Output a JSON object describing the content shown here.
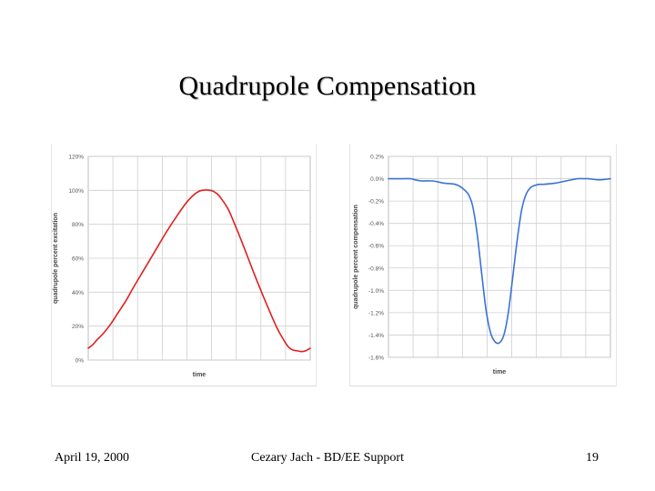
{
  "slide": {
    "title": "Quadrupole Compensation",
    "footer_date": "April 19, 2000",
    "footer_author": "Cezary Jach - BD/EE Support",
    "page_number": "19"
  },
  "chart_data": [
    {
      "type": "line",
      "xlabel": "time",
      "ylabel": "quadrupole percent excitation",
      "ylim": [
        0,
        120
      ],
      "yticks": [
        0,
        20,
        40,
        60,
        80,
        100,
        120
      ],
      "ytick_labels": [
        "0%",
        "20%",
        "40%",
        "60%",
        "80%",
        "100%",
        "120%"
      ],
      "x": [
        0,
        0.02,
        0.04,
        0.07,
        0.1,
        0.13,
        0.17,
        0.2,
        0.25,
        0.3,
        0.35,
        0.4,
        0.45,
        0.5,
        0.55,
        0.58,
        0.6,
        0.63,
        0.66,
        0.7,
        0.75,
        0.8,
        0.85,
        0.88,
        0.9,
        0.92,
        0.94,
        0.96,
        0.98,
        1.0
      ],
      "grid": true,
      "legend": "none",
      "series": [
        {
          "color": "#e02020",
          "values": [
            7,
            9,
            12,
            16,
            21,
            27,
            35,
            42,
            53,
            64,
            75,
            85,
            94,
            99.5,
            100,
            98,
            95,
            89,
            80,
            67,
            50,
            34,
            19,
            12,
            8,
            6,
            5.5,
            5,
            5.5,
            7
          ]
        }
      ]
    },
    {
      "type": "line",
      "xlabel": "time",
      "ylabel": "quadrupole percent compensation",
      "ylim": [
        -1.6,
        0.2
      ],
      "yticks": [
        0.2,
        0,
        -0.2,
        -0.4,
        -0.6,
        -0.8,
        -1.0,
        -1.2,
        -1.4,
        -1.6
      ],
      "ytick_labels": [
        "0.2%",
        "0.0%",
        "-0.2%",
        "-0.4%",
        "-0.6%",
        "-0.8%",
        "-1.0%",
        "-1.2%",
        "-1.4%",
        "-1.6%"
      ],
      "x": [
        0,
        0.05,
        0.1,
        0.12,
        0.15,
        0.2,
        0.25,
        0.3,
        0.33,
        0.36,
        0.38,
        0.4,
        0.42,
        0.44,
        0.46,
        0.48,
        0.5,
        0.52,
        0.54,
        0.56,
        0.58,
        0.6,
        0.62,
        0.64,
        0.66,
        0.68,
        0.7,
        0.75,
        0.8,
        0.85,
        0.88,
        0.9,
        0.95,
        1.0
      ],
      "grid": true,
      "legend": "none",
      "series": [
        {
          "color": "#3a72d8",
          "values": [
            0,
            0,
            0,
            -0.01,
            -0.02,
            -0.02,
            -0.04,
            -0.05,
            -0.08,
            -0.14,
            -0.25,
            -0.5,
            -0.85,
            -1.18,
            -1.38,
            -1.46,
            -1.47,
            -1.4,
            -1.2,
            -0.88,
            -0.55,
            -0.28,
            -0.14,
            -0.08,
            -0.06,
            -0.05,
            -0.05,
            -0.04,
            -0.02,
            0,
            0,
            0,
            -0.01,
            0
          ]
        }
      ]
    }
  ]
}
